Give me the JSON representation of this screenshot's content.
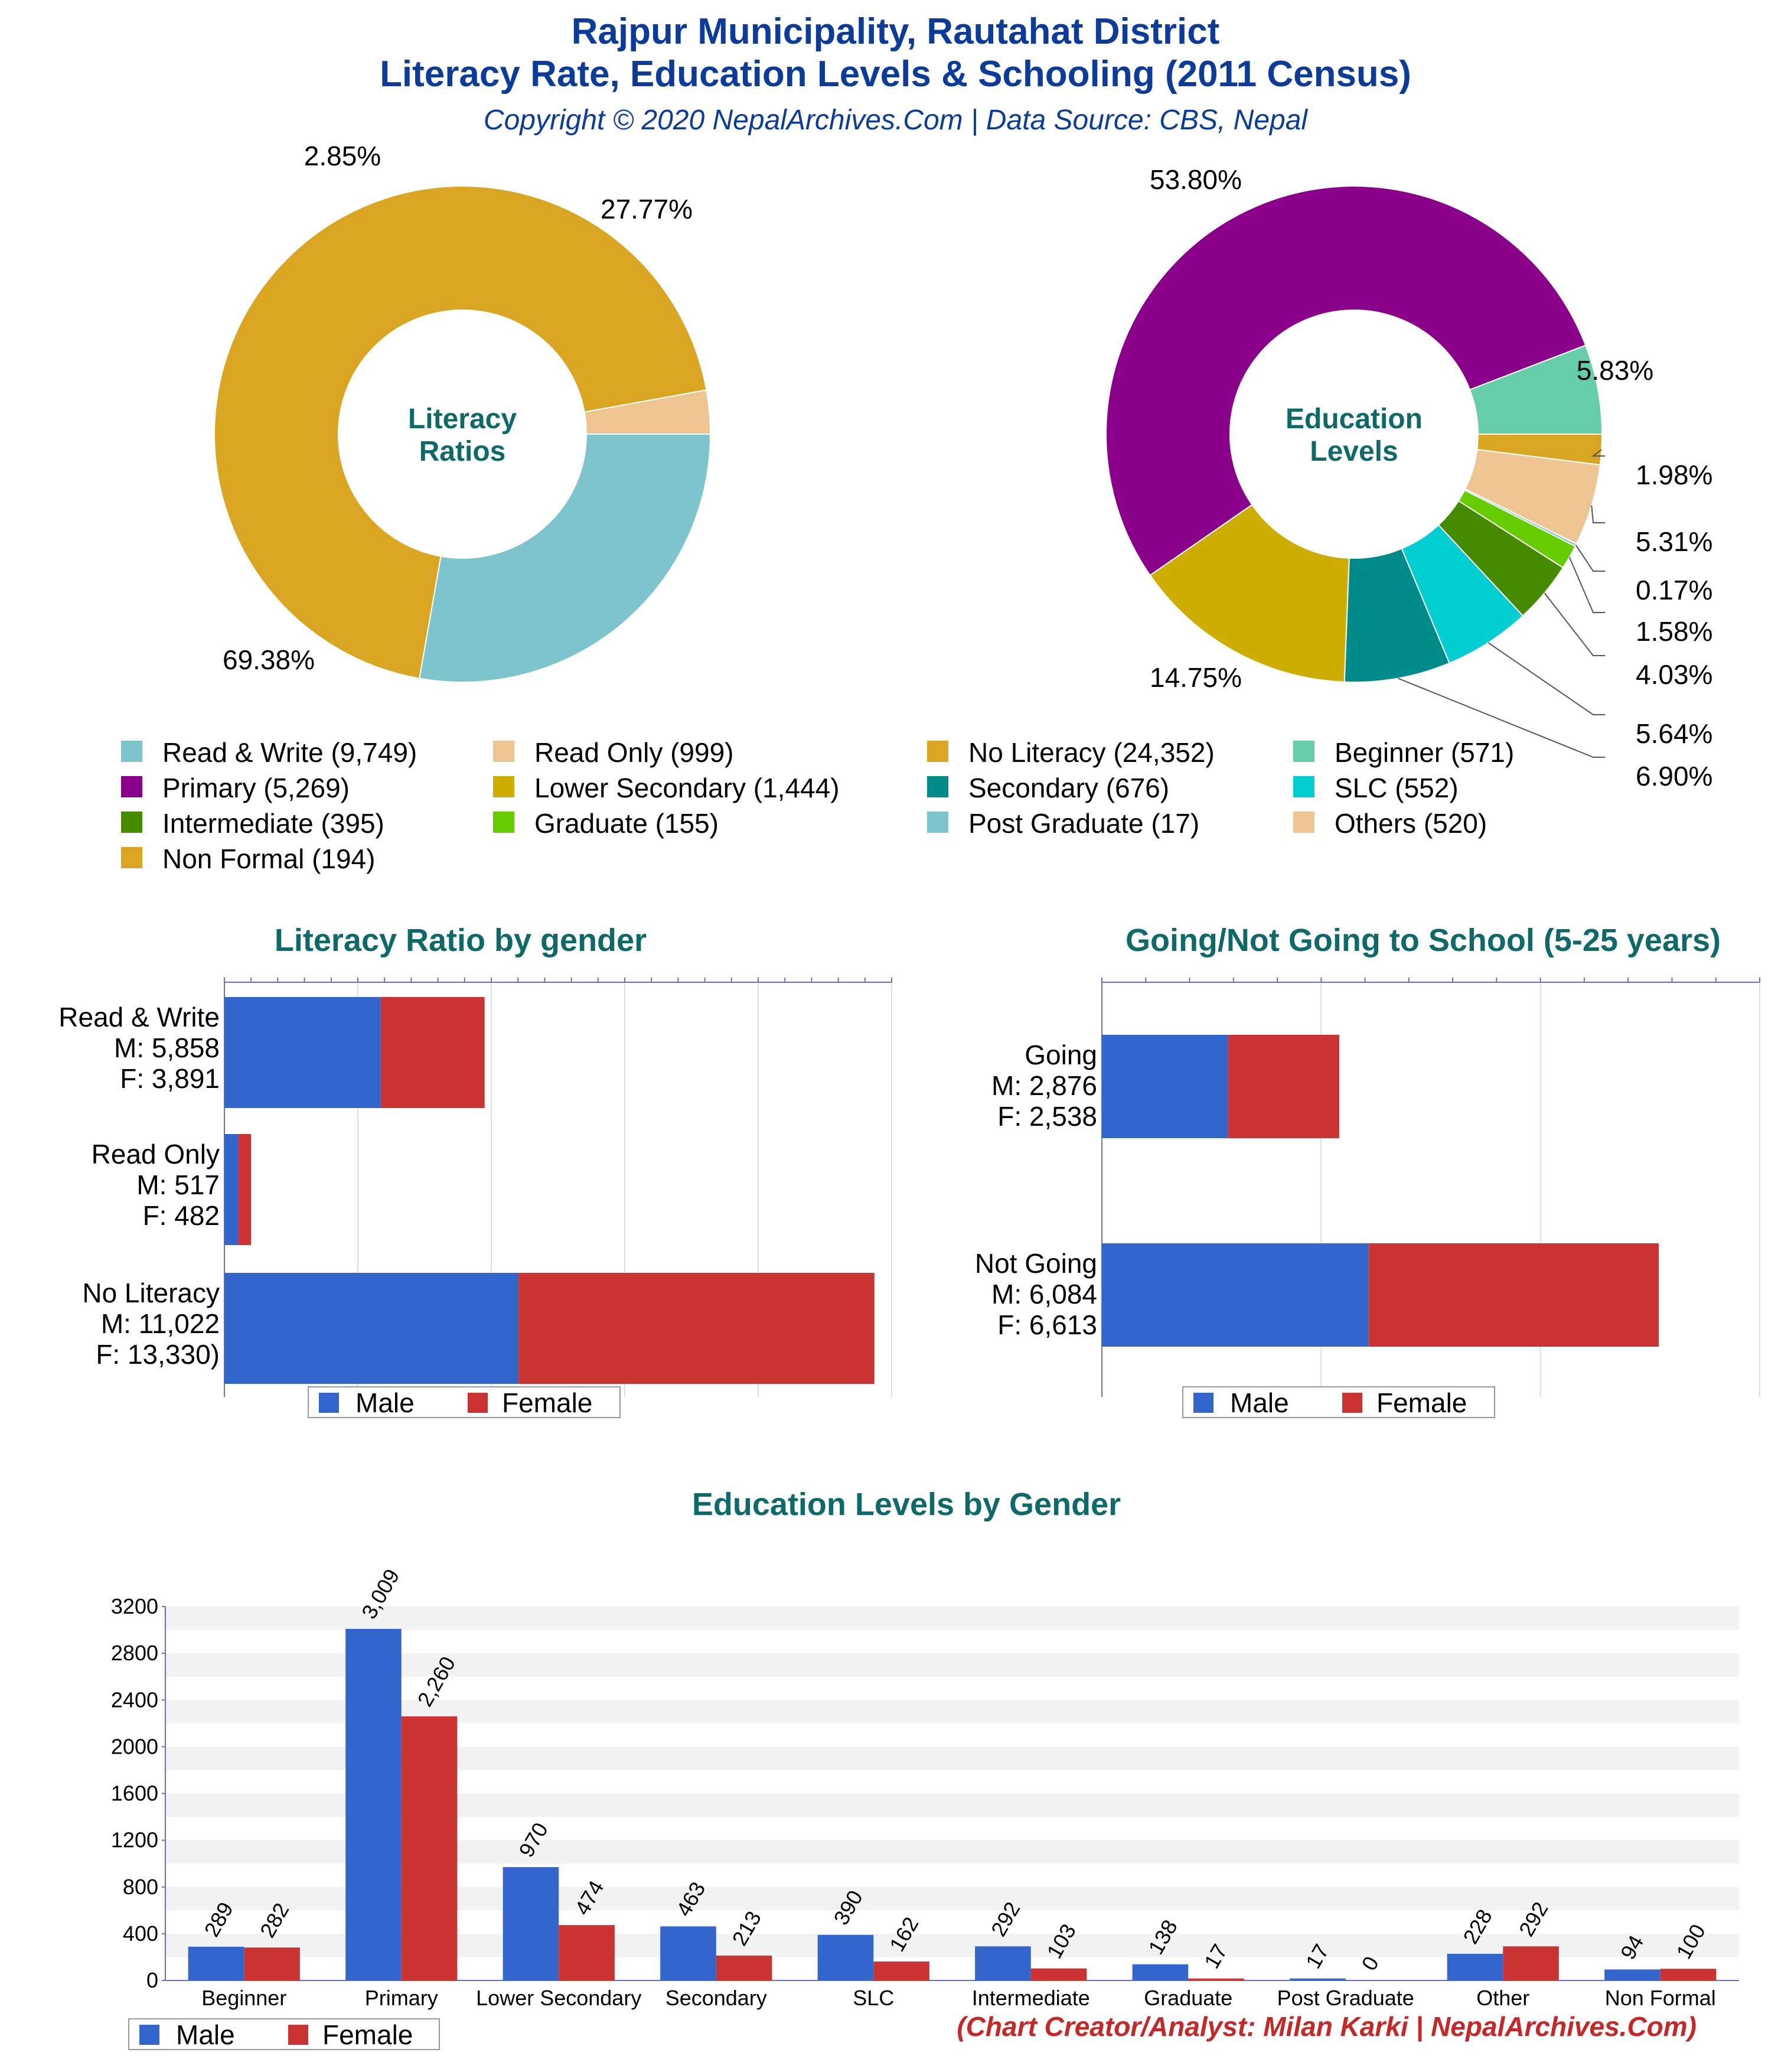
{
  "header": {
    "title_line1": "Rajpur Municipality, Rautahat District",
    "title_line2": "Literacy Rate, Education Levels & Schooling (2011 Census)",
    "subtitle": "Copyright © 2020 NepalArchives.Com | Data Source: CBS, Nepal"
  },
  "footer": {
    "credit": "(Chart Creator/Analyst: Milan Karki | NepalArchives.Com)"
  },
  "chart_data": [
    {
      "id": "literacy-donut",
      "type": "pie",
      "center_label": [
        "Literacy",
        "Ratios"
      ],
      "slices": [
        {
          "name": "Read & Write",
          "value": 9749,
          "percent_label": "27.77%",
          "color": "#7dc4cc"
        },
        {
          "name": "No Literacy",
          "value": 24352,
          "percent_label": "69.38%",
          "color": "#daa520"
        },
        {
          "name": "Read Only",
          "value": 999,
          "percent_label": "2.85%",
          "color": "#eec590"
        }
      ]
    },
    {
      "id": "education-donut",
      "type": "pie",
      "center_label": [
        "Education",
        "Levels"
      ],
      "slices": [
        {
          "name": "Beginner",
          "value": 571,
          "percent_label": "5.83%",
          "color": "#66cdaa"
        },
        {
          "name": "Non Formal",
          "value": 194,
          "percent_label": "1.98%",
          "color": "#daa520"
        },
        {
          "name": "Others",
          "value": 520,
          "percent_label": "5.31%",
          "color": "#eec590"
        },
        {
          "name": "Post Graduate",
          "value": 17,
          "percent_label": "0.17%",
          "color": "#7dc4cc"
        },
        {
          "name": "Graduate",
          "value": 155,
          "percent_label": "1.58%",
          "color": "#66cc00"
        },
        {
          "name": "Intermediate",
          "value": 395,
          "percent_label": "4.03%",
          "color": "#458b00"
        },
        {
          "name": "SLC",
          "value": 552,
          "percent_label": "5.64%",
          "color": "#00ced1"
        },
        {
          "name": "Secondary",
          "value": 676,
          "percent_label": "6.90%",
          "color": "#008b8b"
        },
        {
          "name": "Lower Secondary",
          "value": 1444,
          "percent_label": "14.75%",
          "color": "#ccad00"
        },
        {
          "name": "Primary",
          "value": 5269,
          "percent_label": "53.80%",
          "color": "#8b008b"
        }
      ],
      "legend": [
        {
          "label": "Read & Write (9,749)",
          "color": "#7dc4cc"
        },
        {
          "label": "Read Only (999)",
          "color": "#eec590"
        },
        {
          "label": "No Literacy (24,352)",
          "color": "#daa520"
        },
        {
          "label": "Beginner (571)",
          "color": "#66cdaa"
        },
        {
          "label": "Primary (5,269)",
          "color": "#8b008b"
        },
        {
          "label": "Lower Secondary (1,444)",
          "color": "#ccad00"
        },
        {
          "label": "Secondary (676)",
          "color": "#008b8b"
        },
        {
          "label": "SLC (552)",
          "color": "#00ced1"
        },
        {
          "label": "Intermediate (395)",
          "color": "#458b00"
        },
        {
          "label": "Graduate (155)",
          "color": "#66cc00"
        },
        {
          "label": "Post Graduate (17)",
          "color": "#7dc4cc"
        },
        {
          "label": "Others (520)",
          "color": "#eec590"
        },
        {
          "label": "Non Formal (194)",
          "color": "#daa520"
        }
      ]
    },
    {
      "id": "literacy-gender",
      "type": "bar",
      "orientation": "horizontal",
      "stacked": true,
      "title": "Literacy Ratio by gender",
      "categories": [
        {
          "lines": [
            "Read & Write",
            "M: 5,858",
            "F: 3,891"
          ],
          "male": 5858,
          "female": 3891
        },
        {
          "lines": [
            "Read Only",
            "M: 517",
            "F: 482"
          ],
          "male": 517,
          "female": 482
        },
        {
          "lines": [
            "No Literacy",
            "M: 11,022",
            "F: 13,330)"
          ],
          "male": 11022,
          "female": 13330
        }
      ],
      "xlim": [
        0,
        25000
      ],
      "legend": [
        "Male",
        "Female"
      ],
      "colors": {
        "male": "#3366cc",
        "female": "#cc3333"
      }
    },
    {
      "id": "school-going",
      "type": "bar",
      "orientation": "horizontal",
      "stacked": true,
      "title": "Going/Not Going to School (5-25 years)",
      "categories": [
        {
          "lines": [
            "Going",
            "M: 2,876",
            "F: 2,538"
          ],
          "male": 2876,
          "female": 2538
        },
        {
          "lines": [
            "Not Going",
            "M: 6,084",
            "F: 6,613"
          ],
          "male": 6084,
          "female": 6613
        }
      ],
      "xlim": [
        0,
        15000
      ],
      "legend": [
        "Male",
        "Female"
      ],
      "colors": {
        "male": "#3366cc",
        "female": "#cc3333"
      }
    },
    {
      "id": "education-gender",
      "type": "bar",
      "title": "Education Levels by Gender",
      "categories": [
        "Beginner",
        "Primary",
        "Lower Secondary",
        "Secondary",
        "SLC",
        "Intermediate",
        "Graduate",
        "Post Graduate",
        "Other",
        "Non Formal"
      ],
      "series": [
        {
          "name": "Male",
          "values": [
            289,
            3009,
            970,
            463,
            390,
            292,
            138,
            17,
            228,
            94
          ],
          "labels": [
            "289",
            "3,009",
            "970",
            "463",
            "390",
            "292",
            "138",
            "17",
            "228",
            "94"
          ],
          "color": "#3366cc"
        },
        {
          "name": "Female",
          "values": [
            282,
            2260,
            474,
            213,
            162,
            103,
            17,
            0,
            292,
            100
          ],
          "labels": [
            "282",
            "2,260",
            "474",
            "213",
            "162",
            "103",
            "17",
            "0",
            "292",
            "100"
          ],
          "color": "#cc3333"
        }
      ],
      "yticks": [
        "0",
        "400",
        "800",
        "1200",
        "1600",
        "2000",
        "2400",
        "2800",
        "3200"
      ],
      "ylim": [
        0,
        3200
      ],
      "legend": [
        "Male",
        "Female"
      ]
    }
  ]
}
